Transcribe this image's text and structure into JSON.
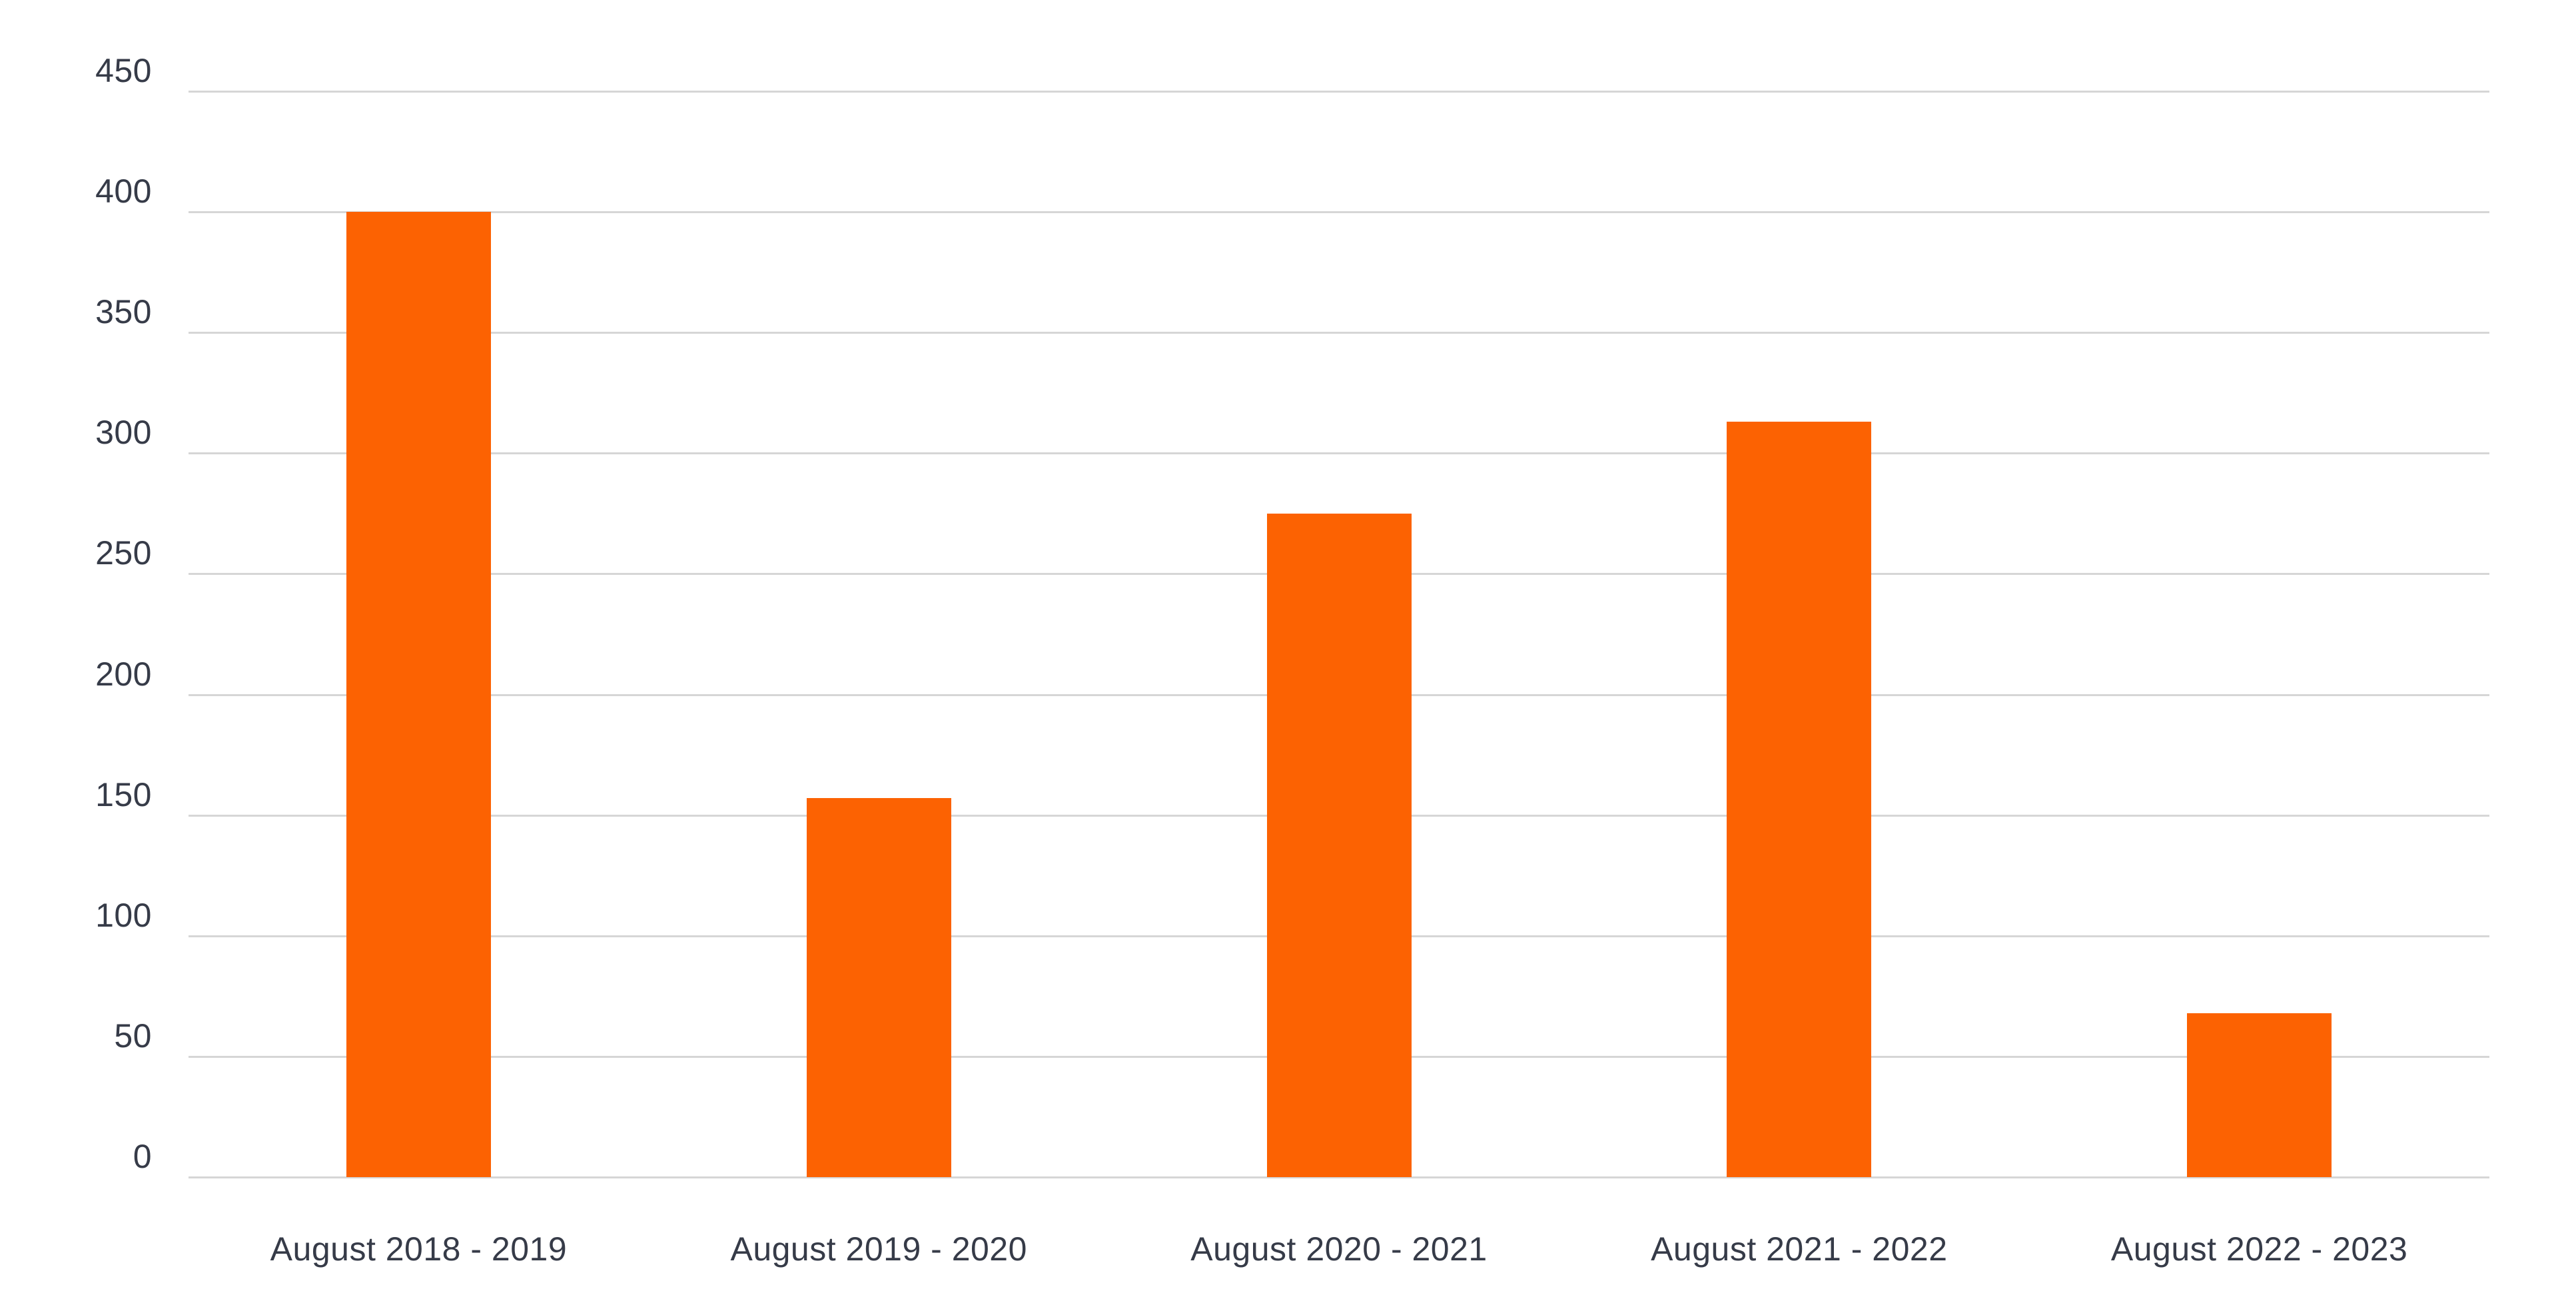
{
  "chart_data": {
    "type": "bar",
    "title": "",
    "xlabel": "",
    "ylabel": "",
    "categories": [
      "August 2018 - 2019",
      "August 2019 - 2020",
      "August 2020 - 2021",
      "August 2021 - 2022",
      "August 2022 - 2023"
    ],
    "values": [
      400,
      157,
      275,
      313,
      68
    ],
    "ylim": [
      0,
      450
    ],
    "yticks": [
      0,
      50,
      100,
      150,
      200,
      250,
      300,
      350,
      400,
      450
    ],
    "grid": "horizontal-only",
    "legend": "none",
    "colors": {
      "bar": "#FC6202",
      "label_text": "#363B48",
      "gridline": "#D6D6D6",
      "background": "#FFFFFF"
    }
  }
}
